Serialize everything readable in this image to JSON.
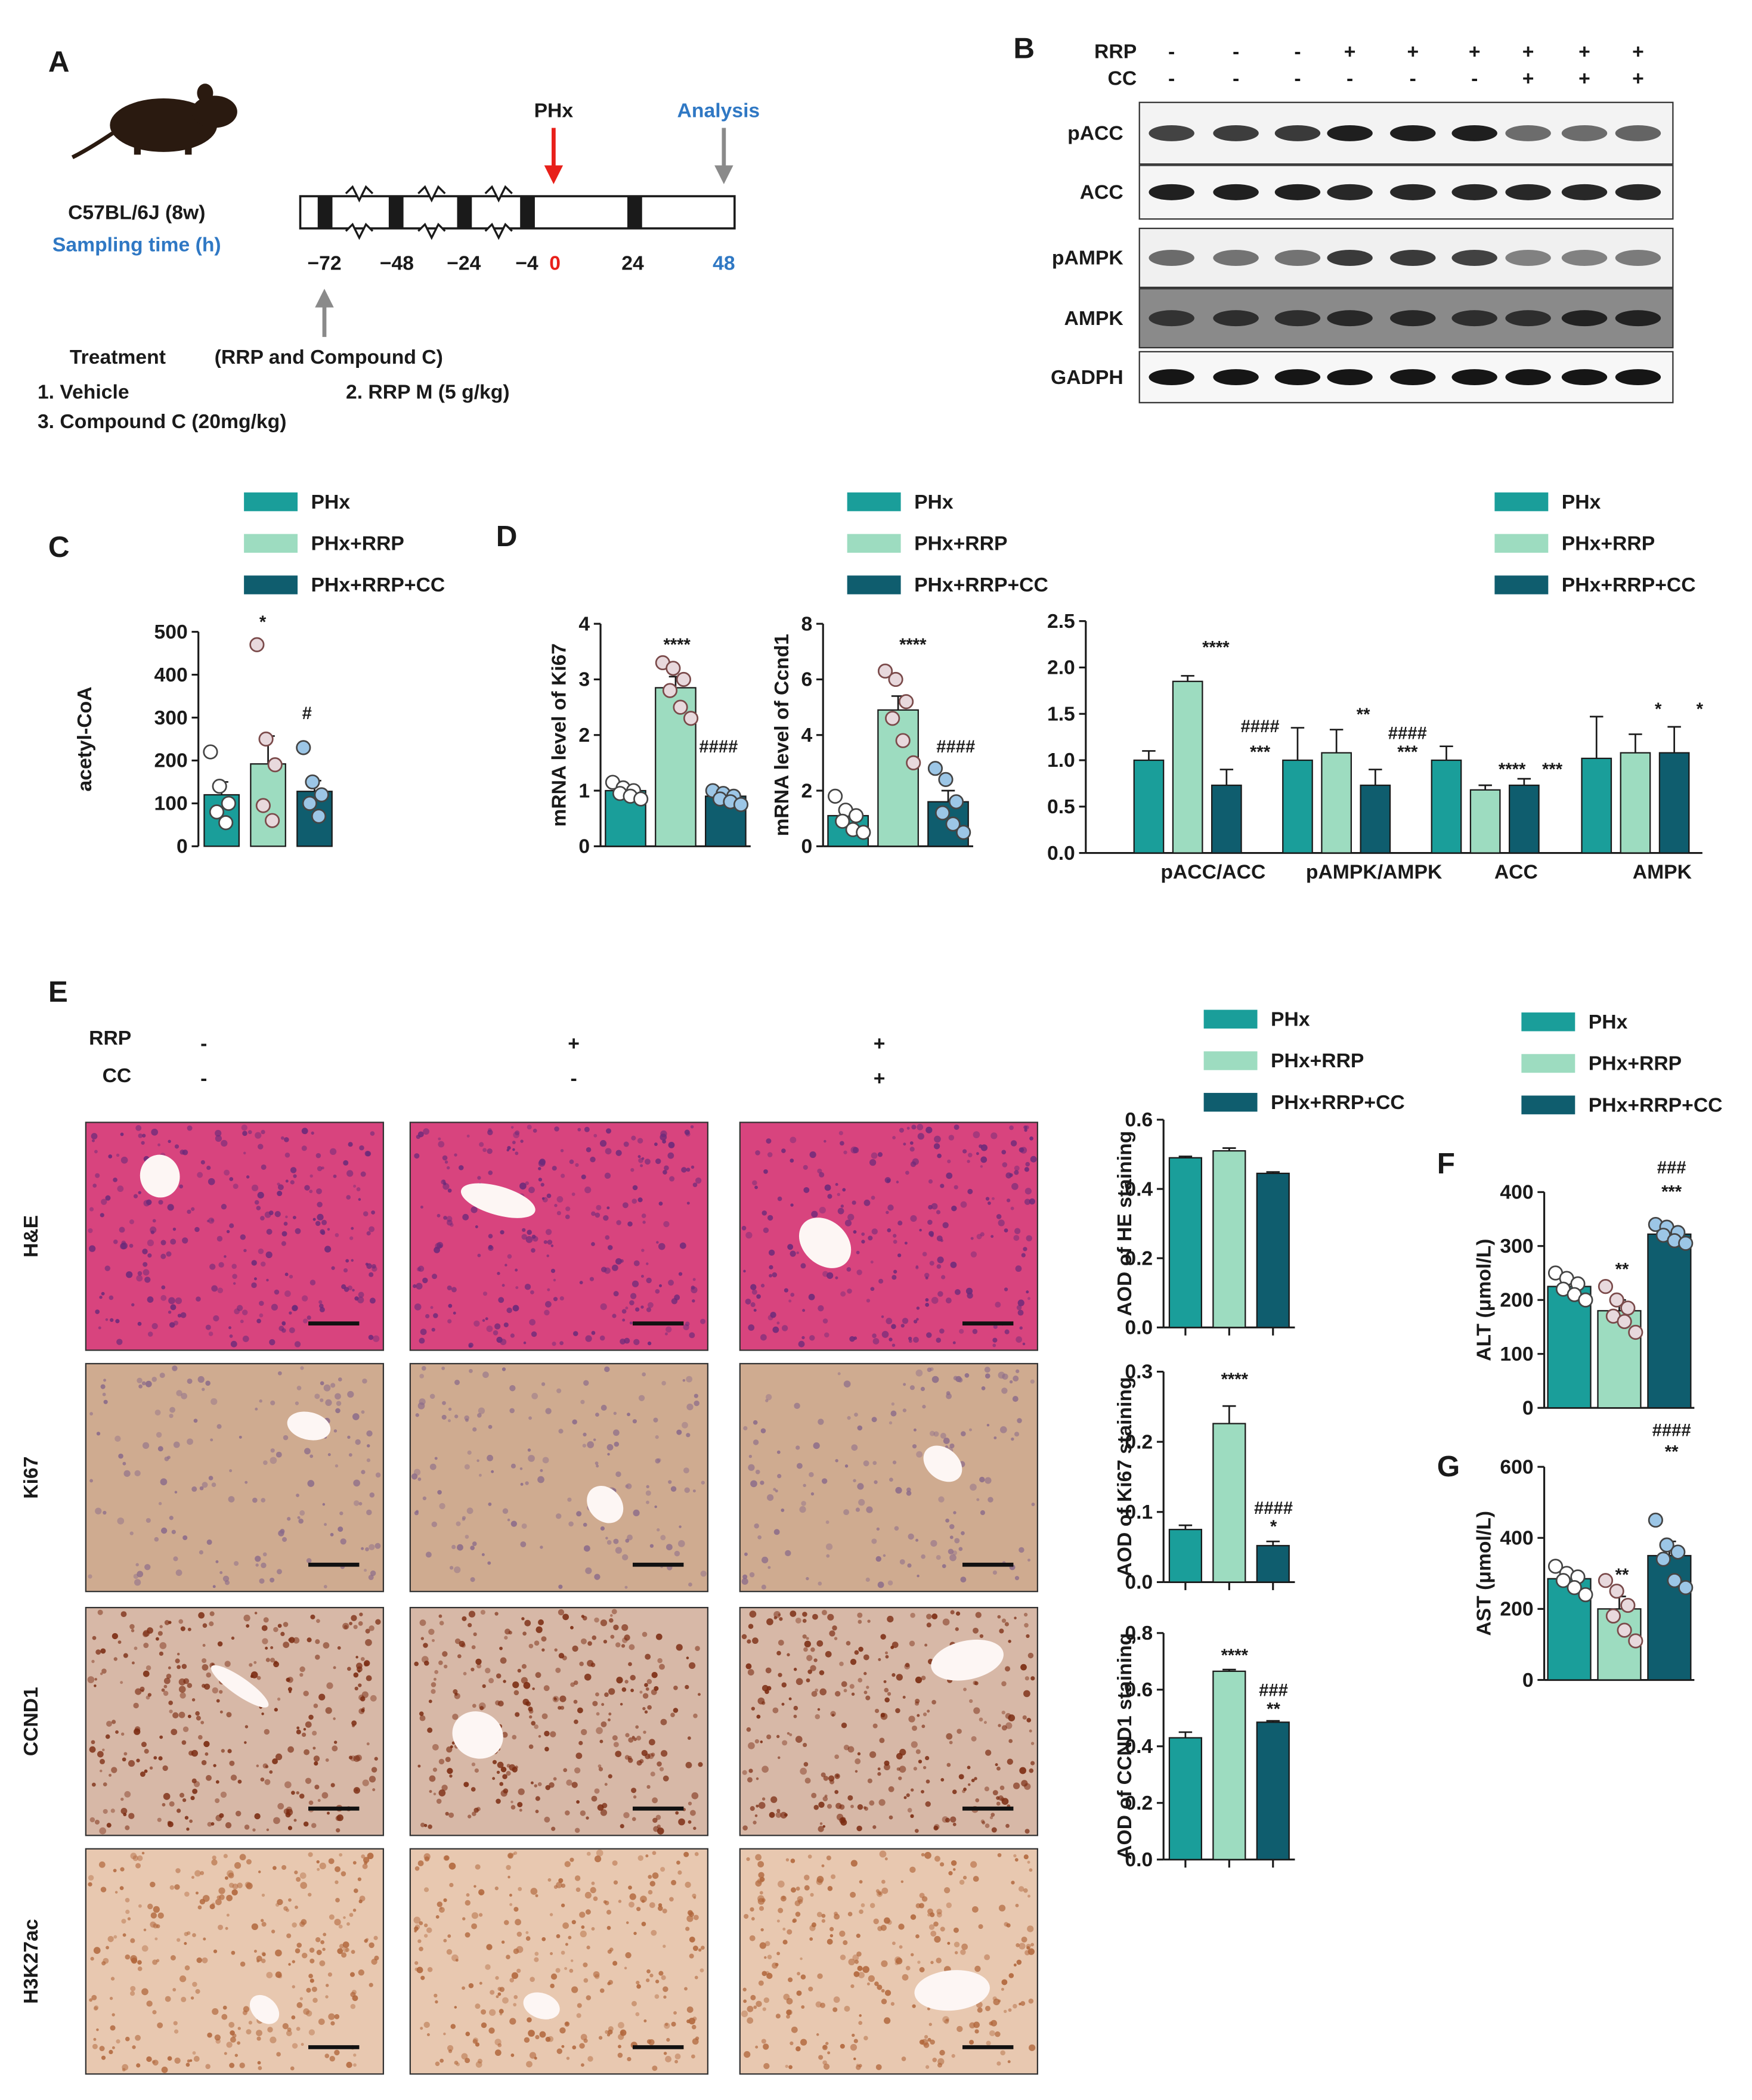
{
  "colors": {
    "pHx": "#1a9e9a",
    "pHxRRP": "#9ddcc0",
    "pHxRRPCC": "#0f5d6e"
  },
  "legend_labels": [
    "PHx",
    "PHx+RRP",
    "PHx+RRP+CC"
  ],
  "panel_labels": {
    "A": "A",
    "B": "B",
    "C": "C",
    "D": "D",
    "E": "E",
    "F": "F",
    "G": "G"
  },
  "panelA": {
    "strain": "C57BL/6J (8w)",
    "sampling": "Sampling time (h)",
    "phx": "PHx",
    "analysis": "Analysis",
    "times": [
      "−72",
      "−48",
      "−24",
      "−4",
      "0",
      "24",
      "48"
    ],
    "treatment": "Treatment",
    "treatment_detail": "(RRP and Compound C)",
    "items": [
      "1. Vehicle",
      "2. RRP M (5 g/kg)",
      "3. Compound C (20mg/kg)"
    ]
  },
  "panelB": {
    "rrp_label": "RRP",
    "cc_label": "CC",
    "rrp": [
      "-",
      "-",
      "-",
      "+",
      "+",
      "+",
      "+",
      "+",
      "+"
    ],
    "cc": [
      "-",
      "-",
      "-",
      "-",
      "-",
      "-",
      "+",
      "+",
      "+"
    ],
    "bands": [
      "pACC",
      "ACC",
      "pAMPK",
      "AMPK",
      "GADPH"
    ]
  },
  "panelE": {
    "rrp_label": "RRP",
    "cc_label": "CC",
    "rrp": [
      "-",
      "+",
      "+"
    ],
    "cc": [
      "-",
      "-",
      "+"
    ],
    "rows": [
      "H&E",
      "Ki67",
      "CCND1",
      "H3K27ac"
    ]
  },
  "chart_data": [
    {
      "id": "C",
      "type": "bar",
      "ylabel": "acetyl-CoA",
      "ylim": [
        0,
        500
      ],
      "yticks": [
        0,
        100,
        200,
        300,
        400,
        500
      ],
      "categories": [
        "PHx",
        "PHx+RRP",
        "PHx+RRP+CC"
      ],
      "values": [
        120,
        192,
        128
      ],
      "errors": [
        30,
        65,
        25
      ],
      "points": [
        [
          220,
          140,
          100,
          80,
          55
        ],
        [
          470,
          250,
          190,
          95,
          60
        ],
        [
          230,
          150,
          120,
          100,
          70
        ]
      ],
      "significance": [
        "",
        "*",
        "#"
      ]
    },
    {
      "id": "D1",
      "type": "bar",
      "ylabel": "mRNA level of Ki67",
      "ylim": [
        0,
        4
      ],
      "yticks": [
        0,
        1,
        2,
        3,
        4
      ],
      "categories": [
        "PHx",
        "PHx+RRP",
        "PHx+RRP+CC"
      ],
      "values": [
        1.0,
        2.85,
        0.9
      ],
      "errors": [
        0.05,
        0.2,
        0.05
      ],
      "points": [
        [
          1.15,
          1.05,
          1.0,
          0.95,
          0.9,
          0.85
        ],
        [
          3.3,
          3.2,
          3.0,
          2.8,
          2.5,
          2.3
        ],
        [
          1.0,
          0.95,
          0.9,
          0.85,
          0.8,
          0.75
        ]
      ],
      "significance": [
        "",
        "****",
        "####"
      ]
    },
    {
      "id": "D2",
      "type": "bar",
      "ylabel": "mRNA level of Ccnd1",
      "ylim": [
        0,
        8
      ],
      "yticks": [
        0,
        2,
        4,
        6,
        8
      ],
      "categories": [
        "PHx",
        "PHx+RRP",
        "PHx+RRP+CC"
      ],
      "values": [
        1.1,
        4.9,
        1.6
      ],
      "errors": [
        0.2,
        0.5,
        0.4
      ],
      "points": [
        [
          1.8,
          1.3,
          1.1,
          0.9,
          0.6,
          0.5
        ],
        [
          6.3,
          6.0,
          5.2,
          4.6,
          3.8,
          3.0
        ],
        [
          2.8,
          2.4,
          1.6,
          1.2,
          0.8,
          0.5
        ]
      ],
      "significance": [
        "",
        "****",
        "####"
      ]
    },
    {
      "id": "D3",
      "type": "bar",
      "ylim": [
        0,
        2.5
      ],
      "yticks": [
        "0.0",
        "0.5",
        "1.0",
        "1.5",
        "2.0",
        "2.5"
      ],
      "categories": [
        "pACC/ACC",
        "pAMPK/AMPK",
        "ACC",
        "AMPK"
      ],
      "series": [
        {
          "name": "PHx",
          "values": [
            1.0,
            1.0,
            1.0,
            1.02
          ],
          "errors": [
            0.1,
            0.35,
            0.15,
            0.45
          ]
        },
        {
          "name": "PHx+RRP",
          "values": [
            1.85,
            1.08,
            0.68,
            1.08
          ],
          "errors": [
            0.06,
            0.25,
            0.05,
            0.2
          ]
        },
        {
          "name": "PHx+RRP+CC",
          "values": [
            0.73,
            0.73,
            0.73,
            1.08
          ],
          "errors": [
            0.17,
            0.17,
            0.07,
            0.28
          ]
        }
      ],
      "significance": [
        [
          "",
          "****",
          "####",
          "***"
        ],
        [
          "",
          "**",
          "####",
          "***"
        ],
        [
          "",
          "",
          "****",
          "***"
        ],
        [
          "",
          "",
          "*",
          "*"
        ]
      ]
    },
    {
      "id": "E1",
      "type": "bar",
      "ylabel": "AOD of HE staining",
      "ylim": [
        0,
        0.6
      ],
      "yticks": [
        "0.0",
        "0.2",
        "0.4",
        "0.6"
      ],
      "categories": [
        "PHx",
        "PHx+RRP",
        "PHx+RRP+CC"
      ],
      "values": [
        0.49,
        0.51,
        0.445
      ],
      "errors": [
        0.004,
        0.008,
        0.004
      ]
    },
    {
      "id": "E2",
      "type": "bar",
      "ylabel": "AOD of Ki67 staining",
      "ylim": [
        0,
        0.3
      ],
      "yticks": [
        "0.0",
        "0.1",
        "0.2",
        "0.3"
      ],
      "categories": [
        "PHx",
        "PHx+RRP",
        "PHx+RRP+CC"
      ],
      "values": [
        0.075,
        0.226,
        0.052
      ],
      "errors": [
        0.006,
        0.025,
        0.006
      ],
      "significance": [
        "",
        "****",
        "####",
        "*"
      ]
    },
    {
      "id": "E3",
      "type": "bar",
      "ylabel": "AOD of CCND1 staining",
      "ylim": [
        0,
        0.8
      ],
      "yticks": [
        "0.0",
        "0.2",
        "0.4",
        "0.6",
        "0.8"
      ],
      "categories": [
        "PHx",
        "PHx+RRP",
        "PHx+RRP+CC"
      ],
      "values": [
        0.43,
        0.665,
        0.485
      ],
      "errors": [
        0.02,
        0.006,
        0.005
      ],
      "significance": [
        "",
        "****",
        "###",
        "**"
      ]
    },
    {
      "id": "F",
      "type": "bar",
      "ylabel": "ALT (μmol/L)",
      "ylim": [
        0,
        400
      ],
      "yticks": [
        0,
        100,
        200,
        300,
        400
      ],
      "categories": [
        "PHx",
        "PHx+RRP",
        "PHx+RRP+CC"
      ],
      "values": [
        225,
        180,
        322
      ],
      "errors": [
        12,
        20,
        10
      ],
      "points": [
        [
          250,
          240,
          230,
          220,
          210,
          200
        ],
        [
          225,
          200,
          185,
          170,
          160,
          140
        ],
        [
          340,
          335,
          325,
          320,
          310,
          305
        ]
      ],
      "significance": [
        "",
        "**",
        "###",
        "***"
      ]
    },
    {
      "id": "G",
      "type": "bar",
      "ylabel": "AST (μmol/L)",
      "ylim": [
        0,
        600
      ],
      "yticks": [
        0,
        200,
        400,
        600
      ],
      "categories": [
        "PHx",
        "PHx+RRP",
        "PHx+RRP+CC"
      ],
      "values": [
        285,
        200,
        350
      ],
      "errors": [
        20,
        35,
        40
      ],
      "points": [
        [
          320,
          300,
          290,
          280,
          260,
          240
        ],
        [
          280,
          250,
          210,
          180,
          140,
          110
        ],
        [
          450,
          380,
          360,
          340,
          280,
          260
        ]
      ],
      "significance": [
        "",
        "**",
        "####",
        "**"
      ]
    }
  ]
}
